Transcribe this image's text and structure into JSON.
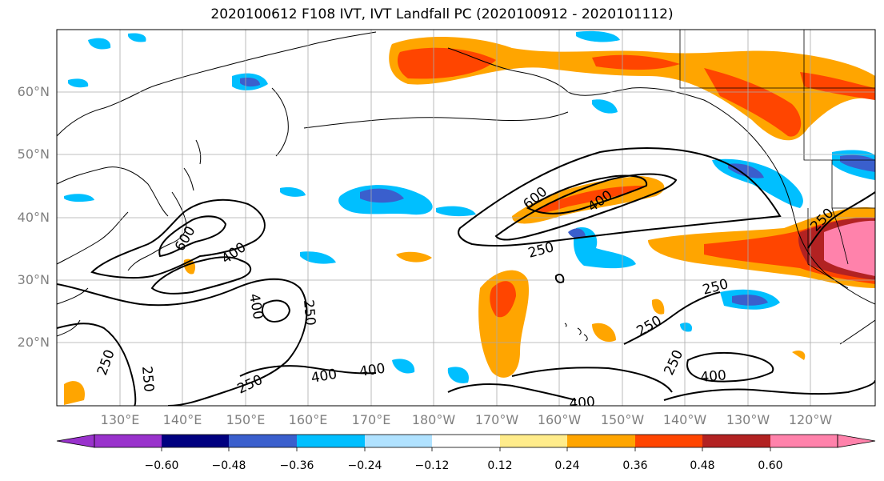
{
  "title": "2020100612 F108 IVT, IVT Landfall PC (2020100912 - 2020101112)",
  "lat_labels": [
    "60°N",
    "50°N",
    "40°N",
    "30°N",
    "20°N"
  ],
  "lon_labels": [
    "130°E",
    "140°E",
    "150°E",
    "160°E",
    "170°E",
    "180°W",
    "170°W",
    "160°W",
    "150°W",
    "140°W",
    "130°W",
    "120°W"
  ],
  "colorbar": {
    "ticks": [
      "−0.60",
      "−0.48",
      "−0.36",
      "−0.24",
      "−0.12",
      "0.12",
      "0.24",
      "0.36",
      "0.48",
      "0.60"
    ],
    "colors": [
      "#9932cc",
      "#000080",
      "#3a5fcd",
      "#00bfff",
      "#b0e2ff",
      "#ffffff",
      "#ffec8b",
      "#ffa500",
      "#ff4500",
      "#b22222",
      "#ff82ab"
    ]
  },
  "contour_labels": [
    "400",
    "600",
    "250",
    "400",
    "600",
    "400",
    "250",
    "400",
    "250",
    "250",
    "400",
    "250",
    "250",
    "400",
    "250",
    "250",
    "400",
    "250"
  ]
}
